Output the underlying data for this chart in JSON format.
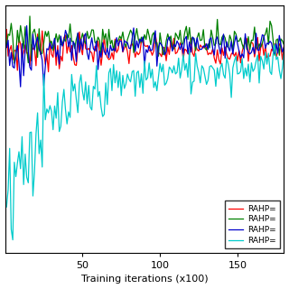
{
  "title": "",
  "xlabel": "Training iterations (x100)",
  "ylabel": "",
  "xlim": [
    0,
    180
  ],
  "ylim": [
    -0.65,
    1.15
  ],
  "x_ticks": [
    50,
    100,
    150
  ],
  "n_points": 180,
  "seed": 7,
  "lines": [
    {
      "label": "RAHP=",
      "color": "#ff0000",
      "base_mean": 0.82,
      "noise_amplitude": 0.05,
      "start_dip": 0.0,
      "convergence_speed": 0.04,
      "extra_noise_early": 0.04
    },
    {
      "label": "RAHP=",
      "color": "#008000",
      "base_mean": 0.9,
      "noise_amplitude": 0.05,
      "start_dip": 0.0,
      "convergence_speed": 0.04,
      "extra_noise_early": 0.05
    },
    {
      "label": "RAHP=",
      "color": "#0000cc",
      "base_mean": 0.86,
      "noise_amplitude": 0.05,
      "start_dip": -0.1,
      "convergence_speed": 0.06,
      "extra_noise_early": 0.08
    },
    {
      "label": "RAHP=",
      "color": "#00cccc",
      "base_mean": 0.72,
      "noise_amplitude": 0.07,
      "start_dip": -0.9,
      "convergence_speed": 0.025,
      "extra_noise_early": 0.2
    }
  ],
  "legend_loc": "lower right",
  "bg_color": "#ffffff",
  "linewidth": 0.9,
  "font_size": 8
}
